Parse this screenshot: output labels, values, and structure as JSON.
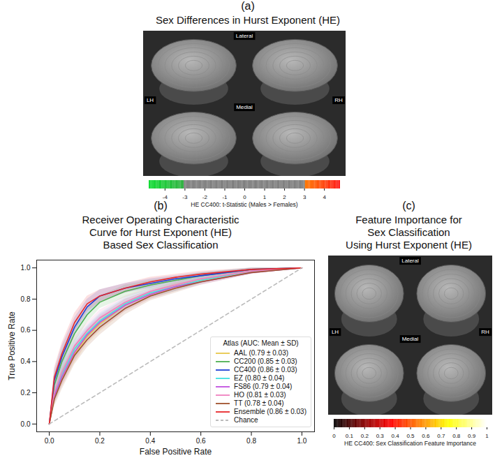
{
  "chart_data": [
    {
      "type": "brain_map",
      "panel_label": "(a)",
      "title": [
        "Sex Differences in Hurst Exponent (HE)"
      ],
      "view_labels": {
        "top": "Lateral",
        "bottom": "Medial",
        "left": "LH",
        "right": "RH"
      },
      "colorbar": {
        "label": "HE CC400: t-Statistic (Males > Females)",
        "range": [
          -4.8,
          4.8
        ],
        "threshold": 3,
        "ticks": [
          -4,
          -3,
          -2,
          -1,
          0,
          1,
          2,
          3,
          4
        ]
      }
    },
    {
      "type": "line",
      "panel_label": "(b)",
      "title": [
        "Receiver Operating Characteristic",
        "Curve for Hurst Exponent (HE)",
        "Based Sex Classification"
      ],
      "xlabel": "False Positive Rate",
      "ylabel": "True Positive Rate",
      "xlim": [
        -0.05,
        1.05
      ],
      "ylim": [
        -0.05,
        1.05
      ],
      "xticks": [
        {
          "value": 0,
          "label": "0.0"
        },
        {
          "value": 0.2,
          "label": "0.2"
        },
        {
          "value": 0.4,
          "label": "0.4"
        },
        {
          "value": 0.6,
          "label": "0.6"
        },
        {
          "value": 0.8,
          "label": "0.8"
        },
        {
          "value": 1,
          "label": "1.0"
        }
      ],
      "yticks": [
        {
          "value": 0,
          "label": "0.0"
        },
        {
          "value": 0.2,
          "label": "0.2"
        },
        {
          "value": 0.4,
          "label": "0.4"
        },
        {
          "value": 0.6,
          "label": "0.6"
        },
        {
          "value": 0.8,
          "label": "0.8"
        },
        {
          "value": 1,
          "label": "1.0"
        }
      ],
      "grid": false,
      "legend": "lower right",
      "legend_title": "Atlas (AUC: Mean ± SD)",
      "x": [
        0,
        0.02,
        0.05,
        0.1,
        0.15,
        0.2,
        0.3,
        0.4,
        0.5,
        0.6,
        0.8,
        1.0
      ],
      "series": [
        {
          "name": "AAL (0.79 ± 0.03)",
          "color": "#e8c84a",
          "values": [
            0,
            0.17,
            0.3,
            0.45,
            0.56,
            0.64,
            0.76,
            0.83,
            0.88,
            0.92,
            0.98,
            1
          ],
          "sd": [
            0,
            0.05,
            0.06,
            0.06,
            0.05,
            0.05,
            0.04,
            0.03,
            0.03,
            0.02,
            0.01,
            0
          ]
        },
        {
          "name": "CC200 (0.85 ± 0.03)",
          "color": "#4caf50",
          "values": [
            0,
            0.25,
            0.4,
            0.58,
            0.7,
            0.78,
            0.85,
            0.89,
            0.92,
            0.95,
            0.99,
            1
          ],
          "sd": [
            0,
            0.06,
            0.07,
            0.06,
            0.05,
            0.04,
            0.04,
            0.03,
            0.02,
            0.02,
            0.01,
            0
          ]
        },
        {
          "name": "CC400 (0.86 ± 0.03)",
          "color": "#1f3fd6",
          "values": [
            0,
            0.28,
            0.43,
            0.62,
            0.75,
            0.82,
            0.87,
            0.9,
            0.93,
            0.95,
            0.99,
            1
          ],
          "sd": [
            0,
            0.06,
            0.07,
            0.06,
            0.05,
            0.04,
            0.03,
            0.03,
            0.02,
            0.02,
            0.01,
            0
          ]
        },
        {
          "name": "EZ (0.80 ± 0.04)",
          "color": "#40e0e0",
          "values": [
            0,
            0.18,
            0.32,
            0.48,
            0.58,
            0.66,
            0.77,
            0.84,
            0.88,
            0.92,
            0.98,
            1
          ],
          "sd": [
            0,
            0.05,
            0.06,
            0.06,
            0.05,
            0.05,
            0.04,
            0.03,
            0.03,
            0.02,
            0.01,
            0
          ]
        },
        {
          "name": "FS86 (0.79 ± 0.04)",
          "color": "#c050e0",
          "values": [
            0,
            0.18,
            0.3,
            0.46,
            0.57,
            0.65,
            0.76,
            0.83,
            0.88,
            0.91,
            0.97,
            1
          ],
          "sd": [
            0,
            0.05,
            0.06,
            0.06,
            0.05,
            0.05,
            0.04,
            0.03,
            0.03,
            0.02,
            0.01,
            0
          ]
        },
        {
          "name": "HO (0.81 ± 0.03)",
          "color": "#f080c0",
          "values": [
            0,
            0.2,
            0.33,
            0.5,
            0.6,
            0.68,
            0.78,
            0.85,
            0.89,
            0.93,
            0.98,
            1
          ],
          "sd": [
            0,
            0.05,
            0.06,
            0.06,
            0.05,
            0.05,
            0.04,
            0.03,
            0.03,
            0.02,
            0.01,
            0
          ]
        },
        {
          "name": "TT (0.78 ± 0.04)",
          "color": "#a0522d",
          "values": [
            0,
            0.16,
            0.28,
            0.44,
            0.54,
            0.62,
            0.74,
            0.82,
            0.87,
            0.91,
            0.97,
            1
          ],
          "sd": [
            0,
            0.05,
            0.06,
            0.06,
            0.05,
            0.05,
            0.04,
            0.03,
            0.03,
            0.02,
            0.01,
            0
          ]
        },
        {
          "name": "Ensemble (0.86 ± 0.03)",
          "color": "#e8262a",
          "values": [
            0,
            0.3,
            0.45,
            0.65,
            0.77,
            0.82,
            0.87,
            0.91,
            0.94,
            0.96,
            0.99,
            1
          ],
          "sd": [
            0,
            0.06,
            0.07,
            0.06,
            0.05,
            0.04,
            0.03,
            0.03,
            0.02,
            0.02,
            0.01,
            0
          ]
        },
        {
          "name": "Chance",
          "color": "#bbbbbb",
          "line_style": "dashed",
          "values": [
            0,
            0.02,
            0.05,
            0.1,
            0.15,
            0.2,
            0.3,
            0.4,
            0.5,
            0.6,
            0.8,
            1.0
          ]
        }
      ]
    },
    {
      "type": "brain_map",
      "panel_label": "(c)",
      "title": [
        "Feature Importance for",
        "Sex Classification",
        "Using Hurst Exponent (HE)"
      ],
      "view_labels": {
        "top": "Lateral",
        "bottom": "Medial",
        "left": "LH",
        "right": "RH"
      },
      "colorbar": {
        "label": "HE CC400: Sex Classification Feature Importance",
        "range": [
          0,
          1
        ],
        "ticks": [
          0,
          0.1,
          0.2,
          0.3,
          0.4,
          0.5,
          0.6,
          0.7,
          0.8,
          0.9,
          1
        ]
      }
    }
  ]
}
